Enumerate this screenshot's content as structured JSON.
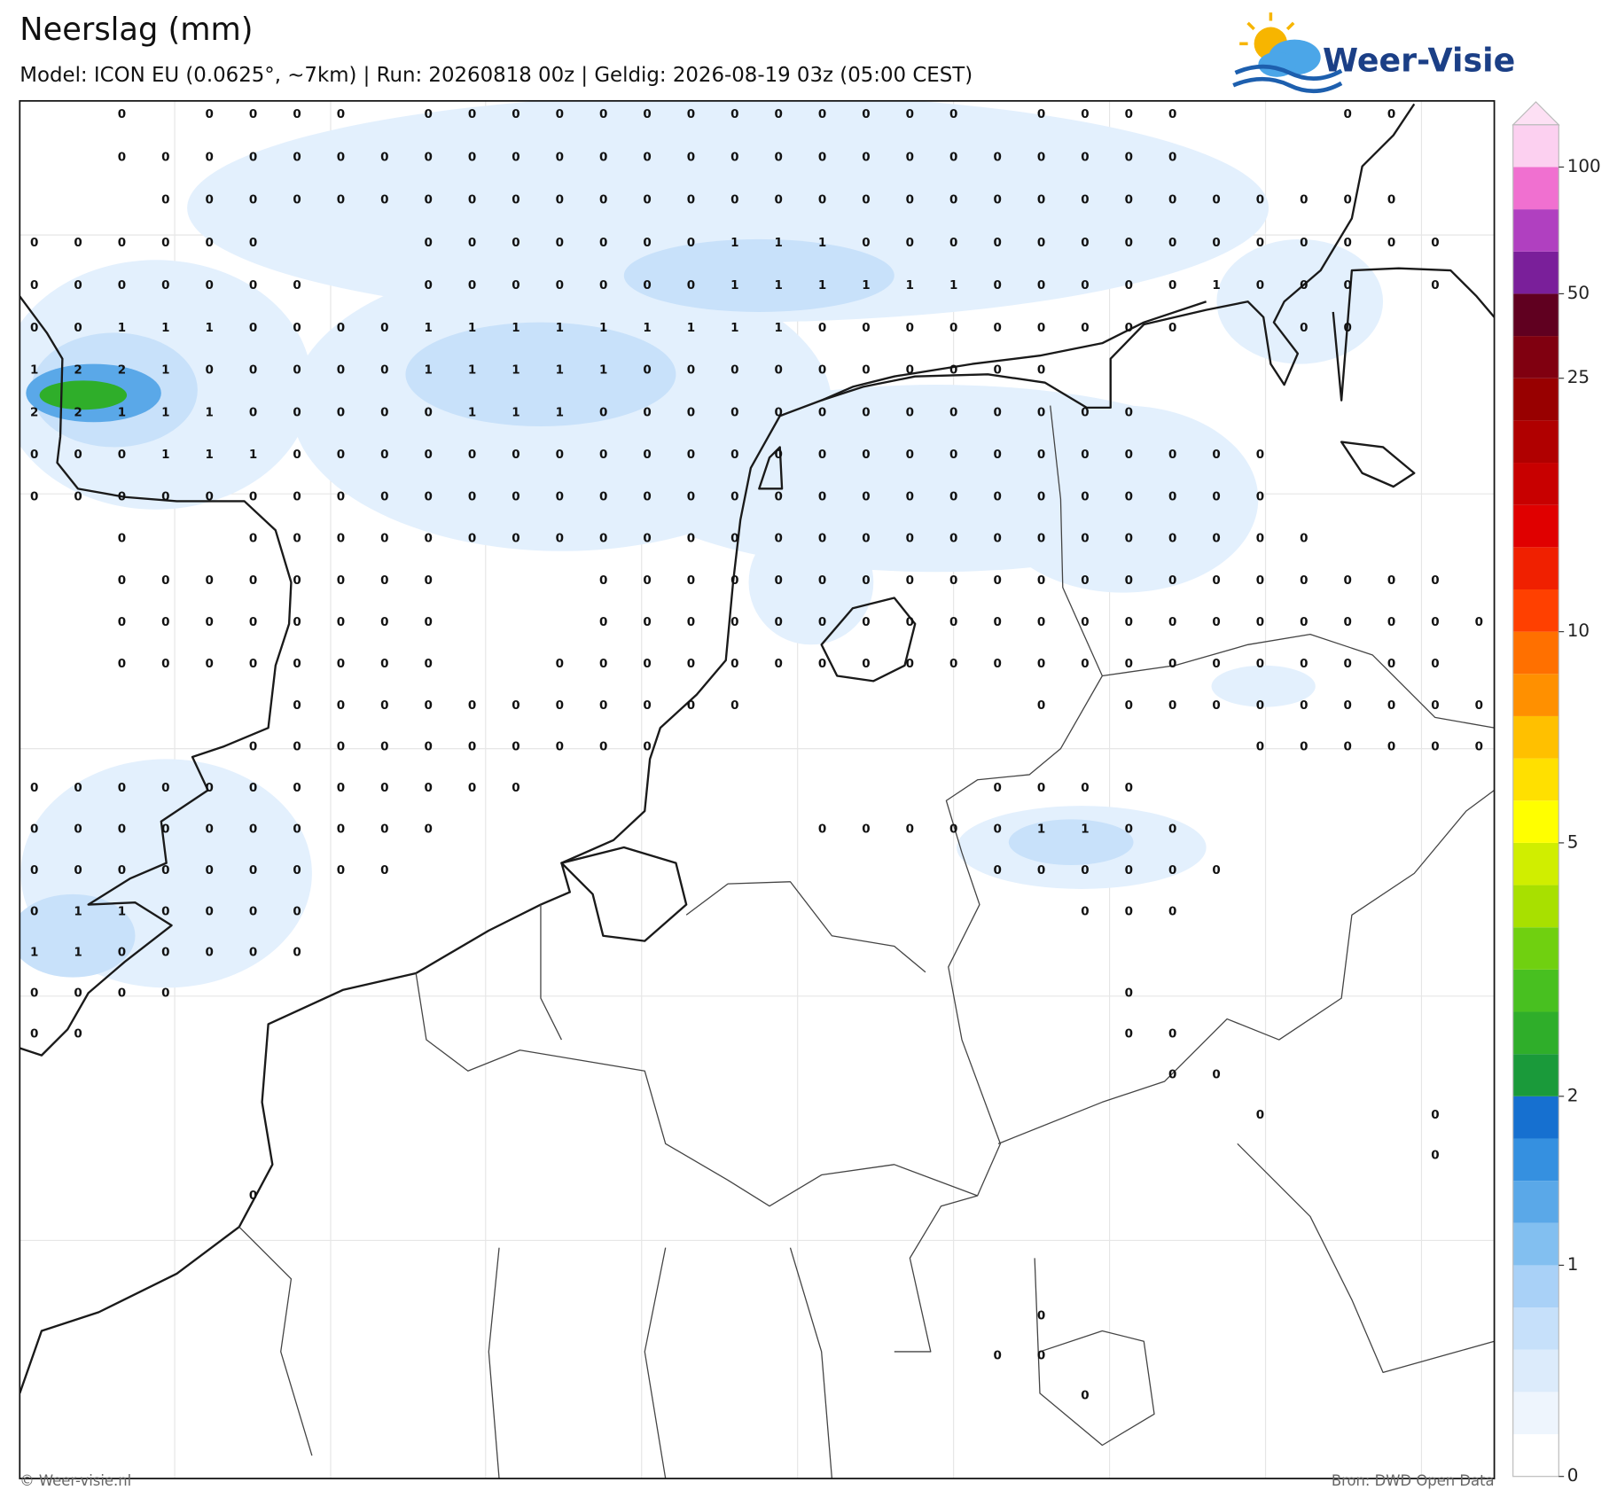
{
  "header": {
    "title": "Neerslag (mm)",
    "subtitle": "Model: ICON EU (0.0625°, ~7km)  |  Run: 20260818 00z  |  Geldig: 2026-08-19 03z (05:00 CEST)"
  },
  "logo": "Weer-Visie",
  "grid": {
    "rows": [
      [
        null,
        null,
        0,
        null,
        0,
        0,
        0,
        0,
        null,
        0,
        0,
        0,
        0,
        0,
        0,
        0,
        0,
        0,
        0,
        0,
        0,
        0,
        null,
        0,
        0,
        0,
        0,
        null,
        null,
        null,
        0,
        0,
        null,
        null
      ],
      [
        null,
        null,
        0,
        0,
        0,
        0,
        0,
        0,
        0,
        0,
        0,
        0,
        0,
        0,
        0,
        0,
        0,
        0,
        0,
        0,
        0,
        0,
        0,
        0,
        0,
        0,
        0,
        null,
        null,
        null,
        null,
        null,
        null,
        null
      ],
      [
        null,
        null,
        null,
        0,
        0,
        0,
        0,
        0,
        0,
        0,
        0,
        0,
        0,
        0,
        0,
        0,
        0,
        0,
        0,
        0,
        0,
        0,
        0,
        0,
        0,
        0,
        0,
        0,
        0,
        0,
        0,
        0,
        null,
        null
      ],
      [
        0,
        0,
        0,
        0,
        0,
        0,
        null,
        null,
        null,
        0,
        0,
        0,
        0,
        0,
        0,
        0,
        1,
        1,
        1,
        0,
        0,
        0,
        0,
        0,
        0,
        0,
        0,
        0,
        0,
        0,
        0,
        0,
        0,
        null
      ],
      [
        0,
        0,
        0,
        0,
        0,
        0,
        0,
        null,
        null,
        0,
        0,
        0,
        0,
        0,
        0,
        0,
        1,
        1,
        1,
        1,
        1,
        1,
        0,
        0,
        0,
        0,
        0,
        1,
        0,
        0,
        0,
        null,
        0,
        null
      ],
      [
        0,
        0,
        1,
        1,
        1,
        0,
        0,
        0,
        0,
        1,
        1,
        1,
        1,
        1,
        1,
        1,
        1,
        1,
        0,
        0,
        0,
        0,
        0,
        0,
        0,
        0,
        0,
        null,
        null,
        0,
        0,
        null,
        null,
        null
      ],
      [
        1,
        2,
        2,
        1,
        0,
        0,
        0,
        0,
        0,
        1,
        1,
        1,
        1,
        1,
        0,
        0,
        0,
        0,
        0,
        0,
        0,
        0,
        0,
        0,
        null,
        null,
        null,
        null,
        null,
        null,
        null,
        null,
        null,
        null
      ],
      [
        2,
        2,
        1,
        1,
        1,
        0,
        0,
        0,
        0,
        0,
        1,
        1,
        1,
        0,
        0,
        0,
        0,
        0,
        0,
        0,
        0,
        0,
        0,
        0,
        0,
        0,
        null,
        null,
        null,
        null,
        null,
        null,
        null,
        null
      ],
      [
        0,
        0,
        0,
        1,
        1,
        1,
        0,
        0,
        0,
        0,
        0,
        0,
        0,
        0,
        0,
        0,
        0,
        0,
        0,
        0,
        0,
        0,
        0,
        0,
        0,
        0,
        0,
        0,
        0,
        null,
        null,
        null,
        null,
        null
      ],
      [
        0,
        0,
        0,
        0,
        0,
        0,
        0,
        0,
        0,
        0,
        0,
        0,
        0,
        0,
        0,
        0,
        0,
        0,
        0,
        0,
        0,
        0,
        0,
        0,
        0,
        0,
        0,
        0,
        0,
        null,
        null,
        null,
        null,
        null
      ],
      [
        null,
        null,
        0,
        null,
        null,
        0,
        0,
        0,
        0,
        0,
        0,
        0,
        0,
        0,
        0,
        0,
        0,
        0,
        0,
        0,
        0,
        0,
        0,
        0,
        0,
        0,
        0,
        0,
        0,
        0,
        null,
        null,
        null,
        null
      ],
      [
        null,
        null,
        0,
        0,
        0,
        0,
        0,
        0,
        0,
        0,
        null,
        null,
        null,
        0,
        0,
        0,
        0,
        0,
        0,
        0,
        0,
        0,
        0,
        0,
        0,
        0,
        0,
        0,
        0,
        0,
        0,
        0,
        0,
        null
      ],
      [
        null,
        null,
        0,
        0,
        0,
        0,
        0,
        0,
        0,
        0,
        null,
        null,
        null,
        0,
        0,
        0,
        0,
        0,
        0,
        0,
        0,
        0,
        0,
        0,
        0,
        0,
        0,
        0,
        0,
        0,
        0,
        0,
        0,
        0
      ],
      [
        null,
        null,
        0,
        0,
        0,
        0,
        0,
        0,
        0,
        0,
        null,
        null,
        0,
        0,
        0,
        0,
        0,
        0,
        0,
        0,
        0,
        0,
        0,
        0,
        0,
        0,
        0,
        0,
        0,
        0,
        0,
        0,
        0,
        null
      ],
      [
        null,
        null,
        null,
        null,
        null,
        null,
        0,
        0,
        0,
        0,
        0,
        0,
        0,
        0,
        0,
        0,
        0,
        null,
        null,
        null,
        null,
        null,
        null,
        0,
        null,
        0,
        0,
        0,
        0,
        0,
        0,
        0,
        0,
        0
      ],
      [
        null,
        null,
        null,
        null,
        null,
        0,
        0,
        0,
        0,
        0,
        0,
        0,
        0,
        0,
        0,
        null,
        null,
        null,
        null,
        null,
        null,
        null,
        null,
        null,
        null,
        null,
        null,
        null,
        0,
        0,
        0,
        0,
        0,
        0
      ],
      [
        0,
        0,
        0,
        0,
        0,
        0,
        0,
        0,
        0,
        0,
        0,
        0,
        null,
        null,
        null,
        null,
        null,
        null,
        null,
        null,
        null,
        null,
        0,
        0,
        0,
        0,
        null,
        null,
        null,
        null,
        null,
        null,
        null,
        null
      ],
      [
        0,
        0,
        0,
        0,
        0,
        0,
        0,
        0,
        0,
        0,
        null,
        null,
        null,
        null,
        null,
        null,
        null,
        null,
        0,
        0,
        0,
        0,
        0,
        1,
        1,
        0,
        0,
        null,
        null,
        null,
        null,
        null,
        null,
        null
      ],
      [
        0,
        0,
        0,
        0,
        0,
        0,
        0,
        0,
        0,
        null,
        null,
        null,
        null,
        null,
        null,
        null,
        null,
        null,
        null,
        null,
        null,
        null,
        0,
        0,
        0,
        0,
        0,
        0,
        null,
        null,
        null,
        null,
        null,
        null
      ],
      [
        0,
        1,
        1,
        0,
        0,
        0,
        0,
        null,
        null,
        null,
        null,
        null,
        null,
        null,
        null,
        null,
        null,
        null,
        null,
        null,
        null,
        null,
        null,
        null,
        0,
        0,
        0,
        null,
        null,
        null,
        null,
        null,
        null,
        null
      ],
      [
        1,
        1,
        0,
        0,
        0,
        0,
        0,
        null,
        null,
        null,
        null,
        null,
        null,
        null,
        null,
        null,
        null,
        null,
        null,
        null,
        null,
        null,
        null,
        null,
        null,
        null,
        null,
        null,
        null,
        null,
        null,
        null,
        null,
        null
      ],
      [
        0,
        0,
        0,
        0,
        null,
        null,
        null,
        null,
        null,
        null,
        null,
        null,
        null,
        null,
        null,
        null,
        null,
        null,
        null,
        null,
        null,
        null,
        null,
        null,
        null,
        0,
        null,
        null,
        null,
        null,
        null,
        null,
        null,
        null
      ],
      [
        0,
        0,
        null,
        null,
        null,
        null,
        null,
        null,
        null,
        null,
        null,
        null,
        null,
        null,
        null,
        null,
        null,
        null,
        null,
        null,
        null,
        null,
        null,
        null,
        null,
        0,
        0,
        null,
        null,
        null,
        null,
        null,
        null,
        null
      ],
      [
        null,
        null,
        null,
        null,
        null,
        null,
        null,
        null,
        null,
        null,
        null,
        null,
        null,
        null,
        null,
        null,
        null,
        null,
        null,
        null,
        null,
        null,
        null,
        null,
        null,
        null,
        0,
        0,
        null,
        null,
        null,
        null,
        null,
        null
      ],
      [
        null,
        null,
        null,
        null,
        null,
        null,
        null,
        null,
        null,
        null,
        null,
        null,
        null,
        null,
        null,
        null,
        null,
        null,
        null,
        null,
        null,
        null,
        null,
        null,
        null,
        null,
        null,
        null,
        0,
        null,
        null,
        null,
        0,
        null
      ],
      [
        null,
        null,
        null,
        null,
        null,
        null,
        null,
        null,
        null,
        null,
        null,
        null,
        null,
        null,
        null,
        null,
        null,
        null,
        null,
        null,
        null,
        null,
        null,
        null,
        null,
        null,
        null,
        null,
        null,
        null,
        null,
        null,
        0,
        null
      ],
      [
        null,
        null,
        null,
        null,
        null,
        0,
        null,
        null,
        null,
        null,
        null,
        null,
        null,
        null,
        null,
        null,
        null,
        null,
        null,
        null,
        null,
        null,
        null,
        null,
        null,
        null,
        null,
        null,
        null,
        null,
        null,
        null,
        null,
        null
      ],
      [
        null,
        null,
        null,
        null,
        null,
        null,
        null,
        null,
        null,
        null,
        null,
        null,
        null,
        null,
        null,
        null,
        null,
        null,
        null,
        null,
        null,
        null,
        null,
        null,
        null,
        null,
        null,
        null,
        null,
        null,
        null,
        null,
        null,
        null
      ],
      [
        null,
        null,
        null,
        null,
        null,
        null,
        null,
        null,
        null,
        null,
        null,
        null,
        null,
        null,
        null,
        null,
        null,
        null,
        null,
        null,
        null,
        null,
        null,
        null,
        null,
        null,
        null,
        null,
        null,
        null,
        null,
        null,
        null,
        null
      ],
      [
        null,
        null,
        null,
        null,
        null,
        null,
        null,
        null,
        null,
        null,
        null,
        null,
        null,
        null,
        null,
        null,
        null,
        null,
        null,
        null,
        null,
        null,
        null,
        0,
        null,
        null,
        null,
        null,
        null,
        null,
        null,
        null,
        null,
        null
      ],
      [
        null,
        null,
        null,
        null,
        null,
        null,
        null,
        null,
        null,
        null,
        null,
        null,
        null,
        null,
        null,
        null,
        null,
        null,
        null,
        null,
        null,
        null,
        0,
        0,
        null,
        null,
        null,
        null,
        null,
        null,
        null,
        null,
        null,
        null
      ],
      [
        null,
        null,
        null,
        null,
        null,
        null,
        null,
        null,
        null,
        null,
        null,
        null,
        null,
        null,
        null,
        null,
        null,
        null,
        null,
        null,
        null,
        null,
        null,
        null,
        0,
        null,
        null,
        null,
        null,
        null,
        null,
        null,
        null,
        null
      ]
    ]
  },
  "colorbar": {
    "levels": [
      0,
      0.1,
      0.2,
      0.3,
      0.5,
      1,
      1.25,
      1.5,
      1.75,
      2,
      2.5,
      3,
      3.5,
      4,
      4.5,
      5,
      6,
      7,
      8,
      9,
      10,
      12,
      14,
      16,
      18,
      20,
      25,
      35,
      50,
      60,
      80,
      100,
      150
    ],
    "colors": [
      "#ffffff",
      "#eef5fd",
      "#dcebfb",
      "#c6e0fa",
      "#a9d1f7",
      "#82bff0",
      "#5aa8e8",
      "#3590e0",
      "#1670d0",
      "#1a9a3a",
      "#2fae2a",
      "#48c020",
      "#70d010",
      "#a8e000",
      "#d0ee00",
      "#ffff00",
      "#ffe000",
      "#ffc000",
      "#ff9000",
      "#ff7000",
      "#ff4000",
      "#f02000",
      "#e00000",
      "#c80000",
      "#b00000",
      "#980000",
      "#800010",
      "#600020",
      "#7a1f9a",
      "#b040c0",
      "#f070d0",
      "#fcd0f0"
    ],
    "ticks": [
      0,
      1,
      2,
      5,
      10,
      25,
      50,
      100
    ]
  },
  "footer": {
    "left": "© Weer-visie.nl",
    "right": "Bron: DWD Open Data"
  }
}
